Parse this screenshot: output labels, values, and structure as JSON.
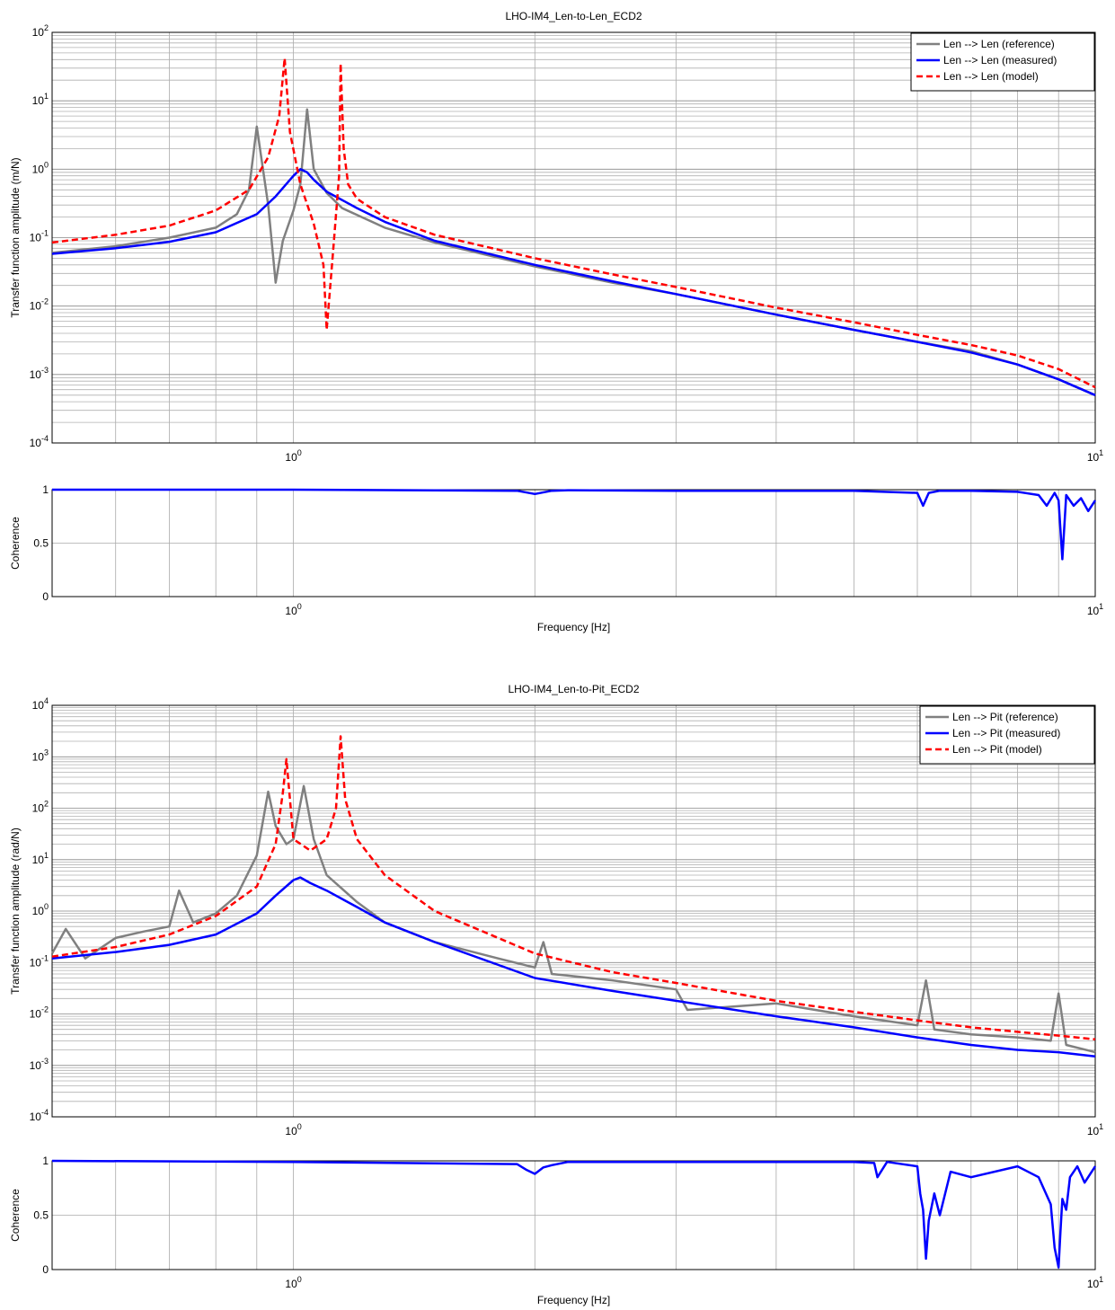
{
  "chart_data": [
    {
      "type": "line",
      "title": "LHO-IM4_Len-to-Len_ECD2",
      "xlabel": "",
      "ylabel": "Transfer function amplitude (m/N)",
      "xscale": "log",
      "yscale": "log",
      "xlim": [
        0.5,
        10
      ],
      "ylim": [
        0.0001,
        100
      ],
      "x_ticks": [
        "10^0",
        "10^1"
      ],
      "y_ticks": [
        "10^-4",
        "10^-3",
        "10^-2",
        "10^-1",
        "10^0",
        "10^1",
        "10^2"
      ],
      "grid": true,
      "legend_position": "top-right",
      "series": [
        {
          "name": "Len --> Len (reference)",
          "color": "#808080",
          "style": "solid",
          "x": [
            0.5,
            0.6,
            0.7,
            0.8,
            0.85,
            0.88,
            0.9,
            0.93,
            0.95,
            0.97,
            1.0,
            1.02,
            1.04,
            1.06,
            1.1,
            1.15,
            1.3,
            1.5,
            2.0,
            2.5,
            3.0,
            4.0,
            5.0,
            6.0,
            7.0,
            8.0,
            9.0,
            10.0
          ],
          "y": [
            0.06,
            0.075,
            0.1,
            0.14,
            0.22,
            0.5,
            4.2,
            0.3,
            0.022,
            0.09,
            0.25,
            0.6,
            7.5,
            1.0,
            0.45,
            0.27,
            0.14,
            0.085,
            0.038,
            0.022,
            0.015,
            0.0075,
            0.0045,
            0.003,
            0.0022,
            0.0014,
            0.00085,
            0.0005
          ]
        },
        {
          "name": "Len --> Len (measured)",
          "color": "#0000ff",
          "style": "solid",
          "x": [
            0.5,
            0.6,
            0.7,
            0.8,
            0.9,
            0.95,
            1.0,
            1.02,
            1.04,
            1.06,
            1.1,
            1.2,
            1.3,
            1.5,
            2.0,
            2.5,
            3.0,
            4.0,
            5.0,
            6.0,
            7.0,
            8.0,
            9.0,
            10.0
          ],
          "y": [
            0.058,
            0.07,
            0.087,
            0.12,
            0.22,
            0.4,
            0.8,
            1.0,
            0.9,
            0.7,
            0.47,
            0.27,
            0.17,
            0.09,
            0.04,
            0.023,
            0.015,
            0.0075,
            0.0045,
            0.003,
            0.0021,
            0.0014,
            0.00085,
            0.0005
          ]
        },
        {
          "name": "Len --> Len (model)",
          "color": "#ff0000",
          "style": "dashed",
          "x": [
            0.5,
            0.6,
            0.7,
            0.8,
            0.88,
            0.93,
            0.96,
            0.975,
            0.99,
            1.02,
            1.06,
            1.09,
            1.1,
            1.12,
            1.14,
            1.145,
            1.155,
            1.17,
            1.2,
            1.3,
            1.5,
            2.0,
            2.5,
            3.0,
            4.0,
            5.0,
            6.0,
            7.0,
            8.0,
            9.0,
            10.0
          ],
          "y": [
            0.085,
            0.11,
            0.15,
            0.25,
            0.5,
            1.5,
            6.0,
            42.0,
            3.5,
            0.6,
            0.16,
            0.04,
            0.0045,
            0.06,
            0.8,
            35.0,
            2.0,
            0.6,
            0.37,
            0.2,
            0.11,
            0.05,
            0.029,
            0.019,
            0.0095,
            0.0058,
            0.0038,
            0.0027,
            0.0019,
            0.0012,
            0.00065
          ]
        }
      ]
    },
    {
      "type": "line",
      "title": "",
      "xlabel": "Frequency [Hz]",
      "ylabel": "Coherence",
      "xscale": "log",
      "xlim": [
        0.5,
        10
      ],
      "ylim": [
        0,
        1
      ],
      "x_ticks": [
        "10^0",
        "10^1"
      ],
      "y_ticks": [
        "0",
        "0.5",
        "1"
      ],
      "grid": true,
      "series": [
        {
          "name": "",
          "color": "#0000ff",
          "style": "solid",
          "x": [
            0.5,
            1.0,
            1.9,
            2.0,
            2.1,
            2.2,
            3.0,
            5.0,
            6.0,
            6.1,
            6.2,
            6.4,
            7.0,
            8.0,
            8.5,
            8.7,
            8.9,
            9.0,
            9.1,
            9.2,
            9.4,
            9.6,
            9.8,
            10.0
          ],
          "y": [
            1.0,
            1.0,
            0.99,
            0.96,
            0.99,
            0.995,
            0.99,
            0.99,
            0.97,
            0.85,
            0.97,
            0.99,
            0.99,
            0.98,
            0.95,
            0.85,
            0.97,
            0.9,
            0.35,
            0.95,
            0.85,
            0.92,
            0.8,
            0.9
          ]
        }
      ]
    },
    {
      "type": "line",
      "title": "LHO-IM4_Len-to-Pit_ECD2",
      "xlabel": "",
      "ylabel": "Transfer function amplitude (rad/N)",
      "xscale": "log",
      "yscale": "log",
      "xlim": [
        0.5,
        10
      ],
      "ylim": [
        0.0001,
        10000
      ],
      "x_ticks": [
        "10^0",
        "10^1"
      ],
      "y_ticks": [
        "10^-4",
        "10^-3",
        "10^-2",
        "10^-1",
        "10^0",
        "10^1",
        "10^2",
        "10^3",
        "10^4"
      ],
      "grid": true,
      "legend_position": "top-right",
      "series": [
        {
          "name": "Len --> Pit (reference)",
          "color": "#808080",
          "style": "solid",
          "x": [
            0.5,
            0.52,
            0.55,
            0.6,
            0.65,
            0.7,
            0.72,
            0.75,
            0.8,
            0.85,
            0.9,
            0.93,
            0.95,
            0.98,
            1.0,
            1.03,
            1.06,
            1.1,
            1.2,
            1.3,
            1.5,
            1.8,
            2.0,
            2.05,
            2.1,
            2.5,
            3.0,
            3.1,
            4.0,
            5.0,
            6.0,
            6.15,
            6.3,
            7.0,
            8.0,
            8.8,
            9.0,
            9.2,
            10.0
          ],
          "y": [
            0.15,
            0.45,
            0.12,
            0.3,
            0.4,
            0.5,
            2.5,
            0.6,
            0.9,
            2.0,
            12.0,
            210.0,
            45.0,
            20.0,
            25.0,
            270.0,
            25.0,
            5.0,
            1.5,
            0.6,
            0.25,
            0.12,
            0.08,
            0.25,
            0.06,
            0.045,
            0.03,
            0.012,
            0.016,
            0.009,
            0.006,
            0.045,
            0.005,
            0.004,
            0.0035,
            0.003,
            0.025,
            0.0025,
            0.0018
          ]
        },
        {
          "name": "Len --> Pit (measured)",
          "color": "#0000ff",
          "style": "solid",
          "x": [
            0.5,
            0.6,
            0.7,
            0.8,
            0.9,
            0.95,
            1.0,
            1.02,
            1.05,
            1.1,
            1.2,
            1.3,
            1.5,
            2.0,
            2.5,
            3.0,
            4.0,
            5.0,
            6.0,
            7.0,
            8.0,
            9.0,
            10.0
          ],
          "y": [
            0.12,
            0.16,
            0.22,
            0.35,
            0.9,
            2.0,
            4.0,
            4.5,
            3.5,
            2.5,
            1.2,
            0.6,
            0.25,
            0.05,
            0.028,
            0.018,
            0.009,
            0.0055,
            0.0035,
            0.0025,
            0.002,
            0.0018,
            0.0015
          ]
        },
        {
          "name": "Len --> Pit (model)",
          "color": "#ff0000",
          "style": "dashed",
          "x": [
            0.5,
            0.6,
            0.7,
            0.8,
            0.9,
            0.95,
            0.97,
            0.98,
            0.99,
            1.0,
            1.05,
            1.1,
            1.13,
            1.145,
            1.16,
            1.2,
            1.3,
            1.5,
            2.0,
            2.5,
            3.0,
            4.0,
            5.0,
            6.0,
            7.0,
            8.0,
            9.0,
            10.0
          ],
          "y": [
            0.13,
            0.2,
            0.35,
            0.8,
            3.0,
            20.0,
            200.0,
            900.0,
            150.0,
            25.0,
            15.0,
            25.0,
            100.0,
            2500.0,
            150.0,
            25.0,
            5.0,
            1.0,
            0.15,
            0.065,
            0.04,
            0.018,
            0.011,
            0.0075,
            0.0055,
            0.0045,
            0.0038,
            0.0032
          ]
        }
      ]
    },
    {
      "type": "line",
      "title": "",
      "xlabel": "Frequency [Hz]",
      "ylabel": "Coherence",
      "xscale": "log",
      "xlim": [
        0.5,
        10
      ],
      "ylim": [
        0,
        1
      ],
      "x_ticks": [
        "10^0",
        "10^1"
      ],
      "y_ticks": [
        "0",
        "0.5",
        "1"
      ],
      "grid": true,
      "series": [
        {
          "name": "",
          "color": "#0000ff",
          "style": "solid",
          "x": [
            0.5,
            1.0,
            1.9,
            1.95,
            2.0,
            2.05,
            2.1,
            2.2,
            3.0,
            5.0,
            5.3,
            5.35,
            5.5,
            6.0,
            6.05,
            6.1,
            6.15,
            6.2,
            6.3,
            6.4,
            6.6,
            7.0,
            8.0,
            8.5,
            8.8,
            8.9,
            9.0,
            9.05,
            9.1,
            9.2,
            9.3,
            9.5,
            9.7,
            10.0
          ],
          "y": [
            1.0,
            0.99,
            0.97,
            0.92,
            0.88,
            0.94,
            0.96,
            0.99,
            0.99,
            0.99,
            0.98,
            0.85,
            0.99,
            0.95,
            0.7,
            0.55,
            0.1,
            0.45,
            0.7,
            0.5,
            0.9,
            0.85,
            0.95,
            0.85,
            0.6,
            0.2,
            0.02,
            0.35,
            0.65,
            0.55,
            0.85,
            0.95,
            0.8,
            0.95
          ]
        }
      ]
    }
  ]
}
